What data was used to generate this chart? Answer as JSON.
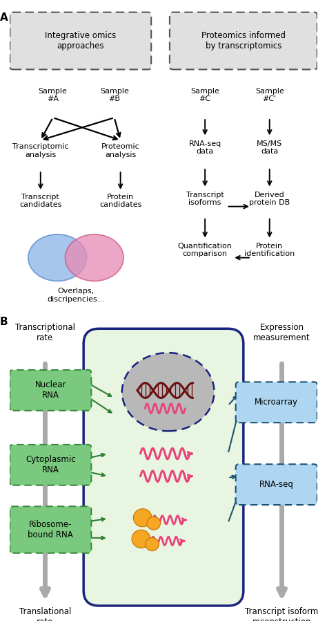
{
  "fig_width": 4.74,
  "fig_height": 8.98,
  "dpi": 100,
  "panel_A": {
    "label": "A",
    "left_box_text": "Integrative omics\napproaches",
    "right_box_text": "Proteomics informed\nby transcriptomics",
    "overlap_text": "Overlaps,\ndiscripencies..."
  },
  "panel_B": {
    "label": "B",
    "left_top": "Transcriptional\nrate",
    "left_bottom": "Translational\nrate",
    "right_top": "Expression\nmeasurement",
    "right_bottom": "Transcript isoform\nreconstruction",
    "green_box_fill": "#7ac97e",
    "green_box_edge": "#3a8a3e",
    "blue_box_fill": "#aed6f1",
    "blue_box_edge": "#1a5276",
    "cell_fill": "#e8f5e0",
    "cell_edge": "#1a237e",
    "nucleus_fill": "#b8b8b8",
    "nucleus_edge": "#1a237e",
    "dna_color": "#6b1010",
    "rna_color": "#e8427a"
  }
}
